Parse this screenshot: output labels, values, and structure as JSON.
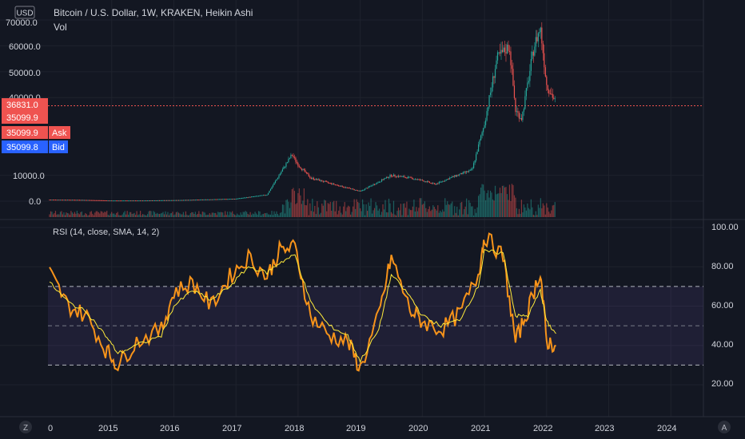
{
  "currency_label": "USD",
  "main_title": "Bitcoin / U.S. Dollar, 1W, KRAKEN, Heikin Ashi",
  "volume_label": "Vol",
  "rsi_label": "RSI (14, close, SMA, 14, 2)",
  "price_axis": {
    "ticks": [
      "70000.0",
      "60000.0",
      "50000.0",
      "40000.0",
      "10000.0",
      "0.0"
    ]
  },
  "price_badges": [
    {
      "value": "36831.0",
      "color": "#ef5350"
    },
    {
      "value": "35099.9",
      "color": "#ef5350"
    },
    {
      "value": "35099.9",
      "color": "#ef5350",
      "tag": "Ask"
    },
    {
      "value": "35099.8",
      "color": "#2962ff",
      "tag": "Bid"
    }
  ],
  "rsi_axis": {
    "ticks": [
      "100.00",
      "80.00",
      "60.00",
      "40.00",
      "20.00"
    ]
  },
  "time_axis": {
    "ticks": [
      "0",
      "2015",
      "2016",
      "2017",
      "2018",
      "2019",
      "2020",
      "2021",
      "2022",
      "2023",
      "2024"
    ]
  },
  "buttons": {
    "zoom": "Z",
    "auto": "A"
  },
  "colors": {
    "bg": "#131722",
    "grid": "#1e222d",
    "up": "#26a69a",
    "down": "#ef5350",
    "rsi_line": "#f7931a",
    "rsi_ma": "#ffeb3b",
    "band_fill": "#7e57c2",
    "text": "#d1d4dc"
  },
  "chart_data": [
    {
      "type": "line",
      "title": "Bitcoin / U.S. Dollar, 1W, KRAKEN, Heikin Ashi",
      "xlabel": "",
      "ylabel": "",
      "x": [
        "2014",
        "2014.5",
        "2015",
        "2015.5",
        "2016",
        "2016.5",
        "2017",
        "2017.5",
        "2017.9",
        "2018",
        "2018.2",
        "2018.5",
        "2019",
        "2019.5",
        "2019.8",
        "2020",
        "2020.2",
        "2020.5",
        "2020.8",
        "2021",
        "2021.2",
        "2021.4",
        "2021.5",
        "2021.6",
        "2021.8",
        "2021.9",
        "2022",
        "2022.15"
      ],
      "series": [
        {
          "values": [
            600,
            500,
            250,
            270,
            400,
            650,
            950,
            2500,
            18000,
            14000,
            9000,
            7000,
            3800,
            10000,
            9000,
            8000,
            6500,
            9500,
            12000,
            30000,
            55000,
            60000,
            35000,
            32000,
            60000,
            67000,
            45000,
            38000
          ]
        }
      ],
      "ylim": [
        -5000,
        75000
      ],
      "current_price": 36831.0,
      "bid": 35099.8,
      "ask": 35099.9
    },
    {
      "type": "line",
      "title": "RSI (14, close, SMA, 14, 2)",
      "xlabel": "",
      "ylabel": "",
      "x": [
        "2014",
        "2014.3",
        "2014.6",
        "2014.9",
        "2015.1",
        "2015.4",
        "2015.8",
        "2016",
        "2016.3",
        "2016.6",
        "2016.9",
        "2017.2",
        "2017.5",
        "2017.7",
        "2017.95",
        "2018.2",
        "2018.5",
        "2018.8",
        "2019",
        "2019.3",
        "2019.5",
        "2019.8",
        "2020",
        "2020.3",
        "2020.6",
        "2020.9",
        "2021",
        "2021.3",
        "2021.5",
        "2021.7",
        "2021.9",
        "2022",
        "2022.15"
      ],
      "series": [
        {
          "values": [
            77,
            60,
            55,
            38,
            30,
            42,
            48,
            67,
            72,
            60,
            75,
            85,
            75,
            88,
            90,
            55,
            45,
            42,
            28,
            55,
            85,
            58,
            52,
            48,
            56,
            76,
            96,
            85,
            42,
            58,
            78,
            42,
            40
          ]
        },
        {
          "values": [
            72,
            62,
            57,
            45,
            36,
            40,
            45,
            60,
            68,
            63,
            70,
            80,
            77,
            82,
            86,
            62,
            50,
            45,
            32,
            48,
            76,
            65,
            55,
            50,
            53,
            70,
            88,
            87,
            55,
            55,
            68,
            52,
            46
          ]
        }
      ],
      "bands": [
        30,
        50,
        70
      ],
      "ylim": [
        10,
        102
      ]
    }
  ]
}
